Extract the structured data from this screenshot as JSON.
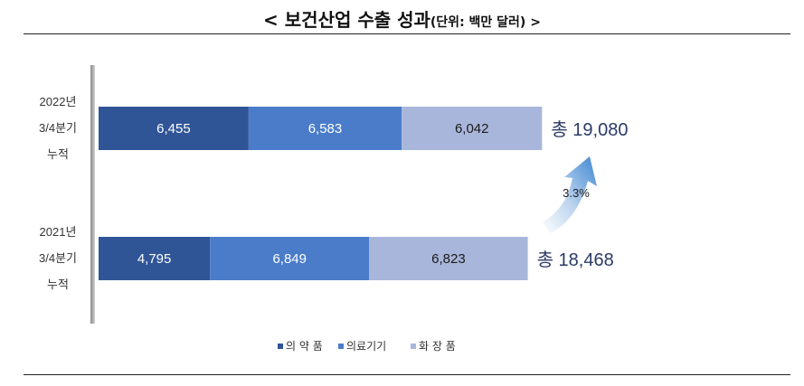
{
  "page": {
    "title": "< 보건산업 수출 성과",
    "unit": "(단위: 백만 달러) >"
  },
  "chart_data": {
    "type": "bar",
    "orientation": "horizontal",
    "stacked": true,
    "categories": [
      [
        "2022년",
        "3/4분기",
        "누적"
      ],
      [
        "2021년",
        "3/4분기",
        "누적"
      ]
    ],
    "series": [
      {
        "name": "의 약 품",
        "values": [
          6455,
          4795
        ],
        "labels": [
          "6,455",
          "4,795"
        ],
        "color": "#2f5597"
      },
      {
        "name": "의료기기",
        "values": [
          6583,
          6849
        ],
        "labels": [
          "6,583",
          "6,849"
        ],
        "color": "#4a7cc9"
      },
      {
        "name": "화 장 품",
        "values": [
          6042,
          6823
        ],
        "labels": [
          "6,042",
          "6,823"
        ],
        "color": "#a9b6db"
      }
    ],
    "totals": [
      "총 19,080",
      "총 18,468"
    ],
    "growth": "3.3%",
    "legend_position": "bottom",
    "grid": false
  }
}
